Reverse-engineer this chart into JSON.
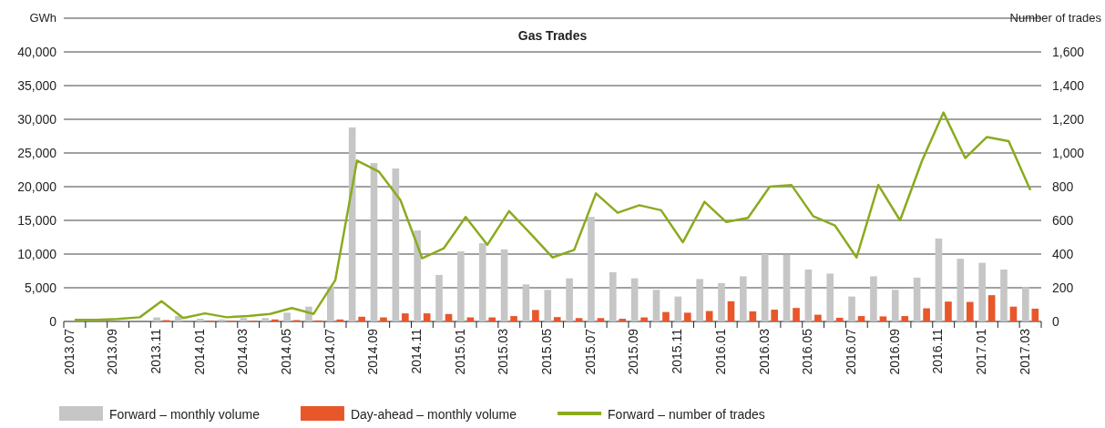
{
  "chart_data": {
    "type": "bar",
    "title": "Gas Trades",
    "ylabel": "GWh",
    "y2label": "Number of trades",
    "categories": [
      "2013.07",
      null,
      "2013.09",
      null,
      "2013.11",
      null,
      "2014.01",
      null,
      "2014.03",
      null,
      "2014.05",
      null,
      "2014.07",
      null,
      "2014.09",
      null,
      "2014.11",
      null,
      "2015.01",
      null,
      "2015.03",
      null,
      "2015.05",
      null,
      "2015.07",
      null,
      "2015.09",
      null,
      "2015.11",
      null,
      "2016.01",
      null,
      "2016.03",
      null,
      "2016.05",
      null,
      "2016.07",
      null,
      "2016.09",
      null,
      "2016.11",
      null,
      "2017.01",
      null,
      "2017.03"
    ],
    "series": [
      {
        "name": "Forward – monthly volume",
        "color": "#c6c6c6",
        "values": [
          null,
          null,
          null,
          null,
          600,
          800,
          400,
          300,
          500,
          500,
          1300,
          2200,
          5200,
          28800,
          23500,
          22700,
          13500,
          6900,
          10400,
          11600,
          10700,
          5500,
          4700,
          6400,
          15500,
          7300,
          6400,
          4700,
          3700,
          6300,
          5700,
          6700,
          10000,
          9900,
          7700,
          7100,
          3700,
          6700,
          4700,
          6500,
          12300,
          9300,
          8700,
          7700,
          5100
        ]
      },
      {
        "name": "Day-ahead – monthly volume",
        "color": "#e8572a",
        "values": [
          0,
          0,
          0,
          0,
          200,
          0,
          100,
          100,
          100,
          300,
          200,
          150,
          300,
          700,
          600,
          1200,
          1200,
          1100,
          600,
          600,
          800,
          1700,
          650,
          500,
          500,
          400,
          600,
          1400,
          1300,
          1550,
          3000,
          1500,
          1750,
          2000,
          1000,
          550,
          800,
          750,
          800,
          1950,
          2950,
          2900,
          3900,
          2200,
          1900
        ]
      },
      {
        "name": "Forward – number of trades",
        "type": "line",
        "axis": "y2",
        "color": "#8aab1f",
        "values": [
          10,
          10,
          15,
          25,
          120,
          20,
          48,
          25,
          33,
          45,
          80,
          45,
          245,
          955,
          890,
          720,
          375,
          435,
          620,
          455,
          655,
          520,
          380,
          425,
          760,
          645,
          690,
          660,
          470,
          710,
          590,
          615,
          800,
          810,
          625,
          570,
          380,
          810,
          600,
          950,
          1240,
          970,
          1095,
          1070,
          780
        ]
      }
    ],
    "ylim": [
      0,
      45000
    ],
    "yticks": [
      0,
      {
        "value": 5000,
        "label": "5,000"
      },
      {
        "value": 10000,
        "label": "10,000"
      },
      {
        "value": 15000,
        "label": "15,000"
      },
      {
        "value": 20000,
        "label": "20,000"
      },
      {
        "value": 25000,
        "label": "25,000"
      },
      {
        "value": 30000,
        "label": "30,000"
      },
      {
        "value": 35000,
        "label": "35,000"
      },
      {
        "value": 40000,
        "label": "40,000"
      },
      {
        "value": 45000,
        "label": null
      }
    ],
    "y2lim": [
      0,
      1800
    ],
    "y2ticks": [
      0,
      200,
      400,
      600,
      800,
      {
        "value": 1000,
        "label": "1,000"
      },
      {
        "value": 1200,
        "label": "1,200"
      },
      {
        "value": 1400,
        "label": "1,400"
      },
      {
        "value": 1600,
        "label": "1,600"
      }
    ],
    "grid": "y",
    "legend": "bottom",
    "line_style": "solid",
    "marker": "none"
  }
}
